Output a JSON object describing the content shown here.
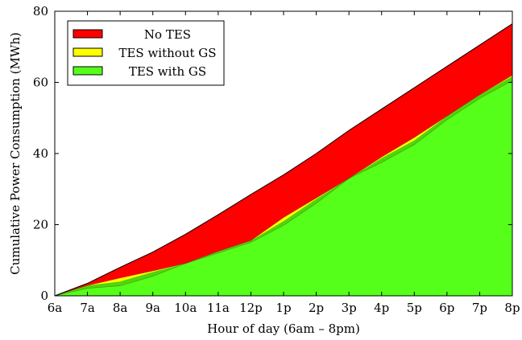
{
  "chart_data": {
    "type": "area",
    "title": "",
    "xlabel": "Hour of day (6am – 8pm)",
    "ylabel": "Cumulative Power Consumption (MWh)",
    "categories": [
      "6a",
      "7a",
      "8a",
      "9a",
      "10a",
      "11a",
      "12p",
      "1p",
      "2p",
      "3p",
      "4p",
      "5p",
      "6p",
      "7p",
      "8p"
    ],
    "ylim": [
      0,
      80
    ],
    "yticks": [
      0,
      20,
      40,
      60,
      80
    ],
    "grid": false,
    "legend_position": "top-left",
    "series": [
      {
        "name": "No TES",
        "color": "#ff0000",
        "values": [
          0,
          3.5,
          8,
          12.3,
          17.3,
          22.8,
          28.5,
          34,
          40,
          46.5,
          52.5,
          58.5,
          64.5,
          70.5,
          76.5
        ]
      },
      {
        "name": "TES without GS",
        "color": "#ffff00",
        "values": [
          0,
          2.9,
          5,
          7,
          9.1,
          12.5,
          15.5,
          22,
          27.5,
          33,
          39,
          44.5,
          50.5,
          56.5,
          62
        ]
      },
      {
        "name": "TES with GS",
        "color": "#55ff1a",
        "values": [
          0,
          2.1,
          2.8,
          5.5,
          9.1,
          12,
          15,
          19.8,
          26,
          33,
          37.5,
          42.5,
          49.5,
          55.5,
          60.5
        ]
      }
    ]
  }
}
